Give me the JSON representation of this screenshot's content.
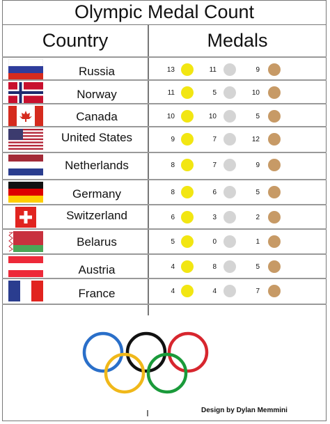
{
  "title": "Olympic Medal Count",
  "headers": {
    "country": "Country",
    "medals": "Medals"
  },
  "rows": [
    {
      "country": "Russia",
      "gold": "13",
      "silver": "11",
      "bronze": "9",
      "flag": "russia"
    },
    {
      "country": "Norway",
      "gold": "11",
      "silver": "5",
      "bronze": "10",
      "flag": "norway"
    },
    {
      "country": "Canada",
      "gold": "10",
      "silver": "10",
      "bronze": "5",
      "flag": "canada"
    },
    {
      "country": "United States",
      "gold": "9",
      "silver": "7",
      "bronze": "12",
      "flag": "usa"
    },
    {
      "country": "Netherlands",
      "gold": "8",
      "silver": "7",
      "bronze": "9",
      "flag": "netherlands"
    },
    {
      "country": "Germany",
      "gold": "8",
      "silver": "6",
      "bronze": "5",
      "flag": "germany"
    },
    {
      "country": "Switzerland",
      "gold": "6",
      "silver": "3",
      "bronze": "2",
      "flag": "switzerland"
    },
    {
      "country": "Belarus",
      "gold": "5",
      "silver": "0",
      "bronze": "1",
      "flag": "belarus"
    },
    {
      "country": "Austria",
      "gold": "4",
      "silver": "8",
      "bronze": "5",
      "flag": "austria"
    },
    {
      "country": "France",
      "gold": "4",
      "silver": "4",
      "bronze": "7",
      "flag": "france"
    }
  ],
  "medal_colors": {
    "gold": "#f2e612",
    "silver": "#d4d4d4",
    "bronze": "#c79a66"
  },
  "ring_colors": [
    "#2a6fc9",
    "#111111",
    "#d7262e",
    "#f0b81a",
    "#1a9a3a"
  ],
  "credit": "Design by Dylan Memmini"
}
